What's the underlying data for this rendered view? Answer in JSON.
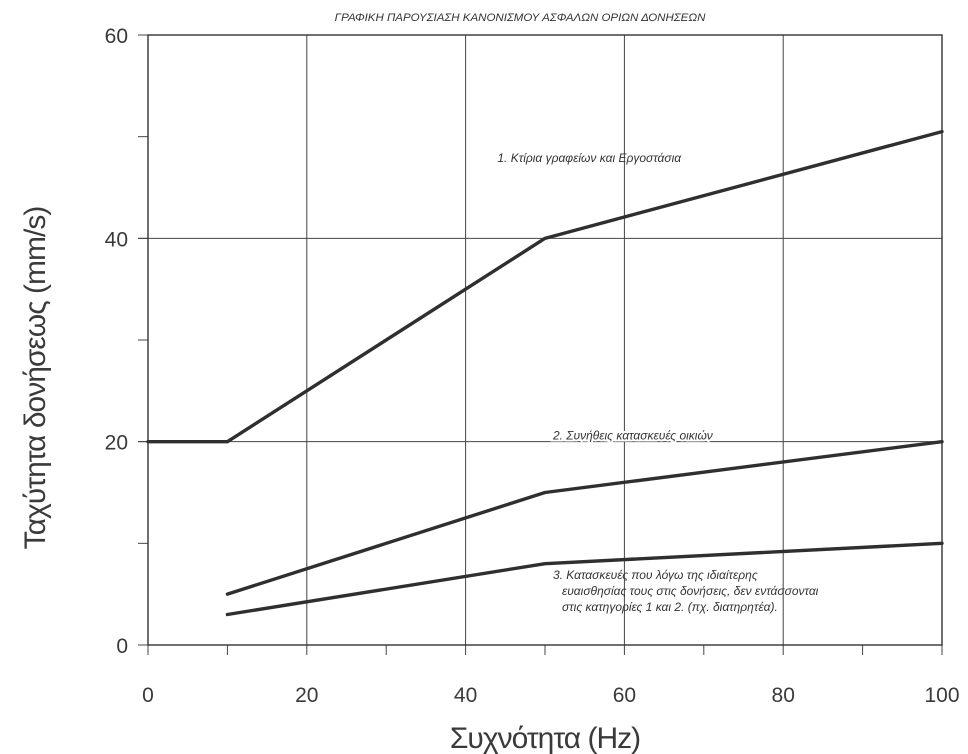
{
  "chart_data": {
    "type": "line",
    "title": "ΓΡΑΦΙΚΗ ΠΑΡΟΥΣΙΑΣΗ ΚΑΝΟΝΙΣΜΟΥ ΑΣΦΑΛΩΝ ΟΡΙΩΝ ΔΟΝΗΣΕΩΝ",
    "xlabel": "Συχνότητα (Hz)",
    "ylabel": "Ταχύτητα δονήσεως (mm/s)",
    "xlim": [
      0,
      100
    ],
    "ylim": [
      0,
      60
    ],
    "xticks": [
      0,
      20,
      40,
      60,
      80,
      100
    ],
    "yticks": [
      0,
      20,
      40,
      60
    ],
    "grid": true,
    "series": [
      {
        "x": [
          0,
          10,
          50,
          100
        ],
        "y": [
          20,
          20,
          40,
          50.5
        ]
      },
      {
        "x": [
          10,
          50,
          100
        ],
        "y": [
          5,
          15,
          20
        ]
      },
      {
        "x": [
          10,
          50,
          100
        ],
        "y": [
          3,
          8,
          10
        ]
      }
    ],
    "annotations": [
      {
        "text": "1. Κτίρια γραφείων και Εργοστάσια",
        "x": 44,
        "y": 47.5
      },
      {
        "text": "2. Συνήθεις κατασκευές οικιών",
        "x": 51,
        "y": 20.2
      },
      {
        "lines": [
          "3. Κατασκευές που λόγω της ιδιαίτερης",
          "ευαισθησίας τους στις δονήσεις, δεν εντάσσονται",
          "στις κατηγορίες 1 και 2. (πχ. διατηρητέα)."
        ],
        "x": 51,
        "y": 6.5
      }
    ]
  }
}
